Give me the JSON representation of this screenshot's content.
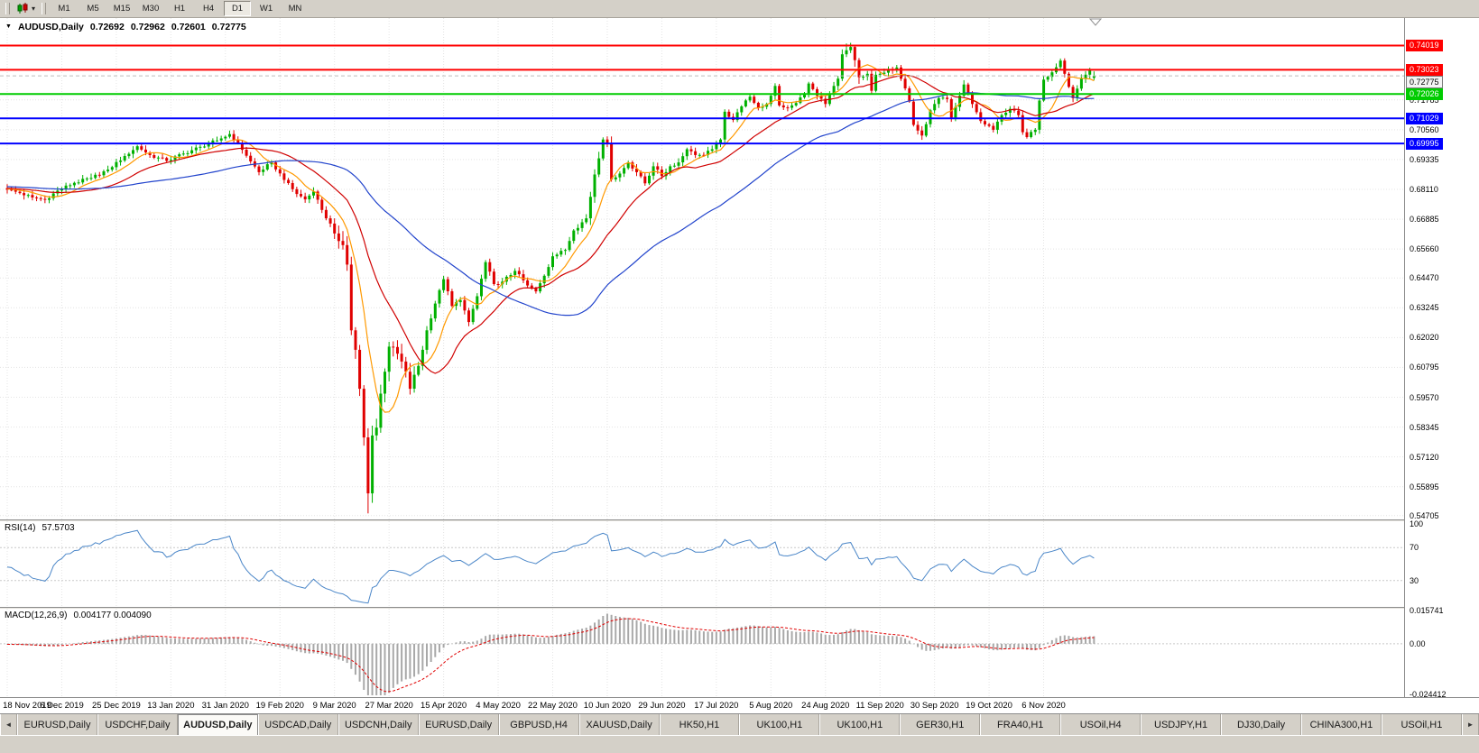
{
  "toolbar": {
    "chart_button": {
      "icon": "candlestick-chart-icon",
      "dropdown": "▾"
    },
    "timeframes": [
      "M1",
      "M5",
      "M15",
      "M30",
      "H1",
      "H4",
      "D1",
      "W1",
      "MN"
    ],
    "active_timeframe": "D1"
  },
  "chart_header": {
    "collapse_arrow": "▼",
    "title": "AUDUSD,Daily",
    "open": "0.72692",
    "high": "0.72962",
    "low": "0.72601",
    "close": "0.72775"
  },
  "price_scale": {
    "range_top": 0.7515,
    "range_bottom": 0.5455,
    "ticks": [
      "0.71785",
      "0.70560",
      "0.69335",
      "0.68110",
      "0.66885",
      "0.65660",
      "0.64470",
      "0.63245",
      "0.62020",
      "0.60795",
      "0.59570",
      "0.58345",
      "0.57120",
      "0.55895",
      "0.54705"
    ],
    "current_price": "0.72775"
  },
  "hlines": [
    {
      "price": 0.74019,
      "label": "0.74019",
      "color": "#ff0000"
    },
    {
      "price": 0.73023,
      "label": "0.73023",
      "color": "#ff0000"
    },
    {
      "price": 0.72026,
      "label": "0.72026",
      "color": "#00cc00"
    },
    {
      "price": 0.71029,
      "label": "0.71029",
      "color": "#0000ff"
    },
    {
      "price": 0.69995,
      "label": "0.69995",
      "color": "#0000ff"
    }
  ],
  "rsi_pane": {
    "label": "RSI(14)",
    "value": "57.5703",
    "scale": [
      {
        "text": "100",
        "v": 100
      },
      {
        "text": "70",
        "v": 70
      },
      {
        "text": "30",
        "v": 30
      }
    ],
    "levels": [
      70,
      30
    ],
    "color": "#4a86c8"
  },
  "macd_pane": {
    "label": "MACD(12,26,9)",
    "values": "0.004177 0.004090",
    "scale_top": "0.015741",
    "scale_zero": "0.00",
    "scale_bottom": "-0.024412"
  },
  "date_axis": [
    "18 Nov 2019",
    "6 Dec 2019",
    "25 Dec 2019",
    "13 Jan 2020",
    "31 Jan 2020",
    "19 Feb 2020",
    "9 Mar 2020",
    "27 Mar 2020",
    "15 Apr 2020",
    "4 May 2020",
    "22 May 2020",
    "10 Jun 2020",
    "29 Jun 2020",
    "17 Jul 2020",
    "5 Aug 2020",
    "24 Aug 2020",
    "11 Sep 2020",
    "30 Sep 2020",
    "19 Oct 2020",
    "6 Nov 2020"
  ],
  "tabs": {
    "left_arrow": "◄",
    "right_arrow": "►",
    "items": [
      "EURUSD,Daily",
      "USDCHF,Daily",
      "AUDUSD,Daily",
      "USDCAD,Daily",
      "USDCNH,Daily",
      "EURUSD,Daily",
      "GBPUSD,H4",
      "XAUUSD,Daily",
      "HK50,H1",
      "UK100,H1",
      "UK100,H1",
      "GER30,H1",
      "FRA40,H1",
      "USOil,H4",
      "USDJPY,H1",
      "DJ30,Daily",
      "CHINA300,H1",
      "USOil,H1"
    ],
    "active_index": 2
  },
  "chart_data": {
    "type": "candlestick",
    "title": "AUDUSD Daily",
    "symbol": "AUDUSD",
    "timeframe": "Daily",
    "bars": 260,
    "bars_per_label": 13,
    "up_color": "#00b000",
    "down_color": "#e00000",
    "x_labels": [
      "18 Nov 2019",
      "6 Dec 2019",
      "25 Dec 2019",
      "13 Jan 2020",
      "31 Jan 2020",
      "19 Feb 2020",
      "9 Mar 2020",
      "27 Mar 2020",
      "15 Apr 2020",
      "4 May 2020",
      "22 May 2020",
      "10 Jun 2020",
      "29 Jun 2020",
      "17 Jul 2020",
      "5 Aug 2020",
      "24 Aug 2020",
      "11 Sep 2020",
      "30 Sep 2020",
      "19 Oct 2020",
      "6 Nov 2020"
    ],
    "y_ticks": [
      0.71785,
      0.7056,
      0.69335,
      0.6811,
      0.66885,
      0.6566,
      0.6447,
      0.63245,
      0.6202,
      0.60795,
      0.5957,
      0.58345,
      0.5712,
      0.55895,
      0.54705
    ],
    "close_anchors": [
      [
        0,
        0.681
      ],
      [
        3,
        0.6796
      ],
      [
        6,
        0.6778
      ],
      [
        9,
        0.6768
      ],
      [
        12,
        0.6806
      ],
      [
        16,
        0.6838
      ],
      [
        20,
        0.6858
      ],
      [
        24,
        0.6892
      ],
      [
        28,
        0.6948
      ],
      [
        31,
        0.6988
      ],
      [
        34,
        0.6952
      ],
      [
        38,
        0.6928
      ],
      [
        42,
        0.6958
      ],
      [
        46,
        0.6986
      ],
      [
        50,
        0.7012
      ],
      [
        53,
        0.7038
      ],
      [
        55,
        0.7002
      ],
      [
        58,
        0.6926
      ],
      [
        60,
        0.6882
      ],
      [
        63,
        0.6922
      ],
      [
        66,
        0.685
      ],
      [
        69,
        0.6792
      ],
      [
        71,
        0.677
      ],
      [
        73,
        0.6802
      ],
      [
        76,
        0.6692
      ],
      [
        78,
        0.663
      ],
      [
        80,
        0.6582
      ],
      [
        81,
        0.6502
      ],
      [
        82,
        0.6232
      ],
      [
        83,
        0.6152
      ],
      [
        84,
        0.5992
      ],
      [
        85,
        0.5792
      ],
      [
        86,
        0.5562
      ],
      [
        87,
        0.58
      ],
      [
        88,
        0.5832
      ],
      [
        89,
        0.5972
      ],
      [
        90,
        0.6062
      ],
      [
        91,
        0.6165
      ],
      [
        93,
        0.6136
      ],
      [
        95,
        0.6062
      ],
      [
        96,
        0.5992
      ],
      [
        98,
        0.6086
      ],
      [
        100,
        0.6232
      ],
      [
        102,
        0.6342
      ],
      [
        104,
        0.6442
      ],
      [
        106,
        0.6332
      ],
      [
        108,
        0.6356
      ],
      [
        110,
        0.6266
      ],
      [
        112,
        0.6372
      ],
      [
        114,
        0.6512
      ],
      [
        116,
        0.6422
      ],
      [
        118,
        0.6432
      ],
      [
        121,
        0.6476
      ],
      [
        124,
        0.6416
      ],
      [
        126,
        0.6392
      ],
      [
        128,
        0.6456
      ],
      [
        130,
        0.6536
      ],
      [
        133,
        0.6562
      ],
      [
        135,
        0.6642
      ],
      [
        138,
        0.6692
      ],
      [
        140,
        0.6872
      ],
      [
        142,
        0.7016
      ],
      [
        143,
        0.7002
      ],
      [
        144,
        0.6852
      ],
      [
        146,
        0.6876
      ],
      [
        148,
        0.6922
      ],
      [
        150,
        0.6882
      ],
      [
        152,
        0.6836
      ],
      [
        154,
        0.6906
      ],
      [
        156,
        0.6866
      ],
      [
        158,
        0.6906
      ],
      [
        160,
        0.6922
      ],
      [
        162,
        0.6976
      ],
      [
        164,
        0.6952
      ],
      [
        166,
        0.6952
      ],
      [
        168,
        0.6976
      ],
      [
        170,
        0.7016
      ],
      [
        171,
        0.713
      ],
      [
        173,
        0.7096
      ],
      [
        175,
        0.7152
      ],
      [
        177,
        0.7192
      ],
      [
        179,
        0.7146
      ],
      [
        181,
        0.7162
      ],
      [
        183,
        0.7236
      ],
      [
        184,
        0.7156
      ],
      [
        186,
        0.7146
      ],
      [
        188,
        0.7166
      ],
      [
        190,
        0.7206
      ],
      [
        191,
        0.7246
      ],
      [
        193,
        0.7196
      ],
      [
        195,
        0.7162
      ],
      [
        197,
        0.7236
      ],
      [
        198,
        0.7266
      ],
      [
        199,
        0.7366
      ],
      [
        201,
        0.7396
      ],
      [
        202,
        0.7342
      ],
      [
        203,
        0.7272
      ],
      [
        205,
        0.7286
      ],
      [
        206,
        0.7216
      ],
      [
        207,
        0.7282
      ],
      [
        208,
        0.7286
      ],
      [
        210,
        0.7306
      ],
      [
        212,
        0.7312
      ],
      [
        214,
        0.7226
      ],
      [
        215,
        0.7172
      ],
      [
        216,
        0.7076
      ],
      [
        218,
        0.7032
      ],
      [
        220,
        0.7136
      ],
      [
        221,
        0.7162
      ],
      [
        222,
        0.7186
      ],
      [
        224,
        0.7182
      ],
      [
        225,
        0.7106
      ],
      [
        227,
        0.7196
      ],
      [
        228,
        0.7242
      ],
      [
        230,
        0.7162
      ],
      [
        232,
        0.7092
      ],
      [
        234,
        0.7072
      ],
      [
        235,
        0.7056
      ],
      [
        237,
        0.7116
      ],
      [
        239,
        0.7142
      ],
      [
        241,
        0.7116
      ],
      [
        242,
        0.7046
      ],
      [
        243,
        0.7026
      ],
      [
        245,
        0.7056
      ],
      [
        246,
        0.7176
      ],
      [
        247,
        0.7262
      ],
      [
        249,
        0.7292
      ],
      [
        251,
        0.734
      ],
      [
        252,
        0.7286
      ],
      [
        254,
        0.7186
      ],
      [
        256,
        0.7266
      ],
      [
        258,
        0.7302
      ],
      [
        259,
        0.72775
      ]
    ],
    "march_low_bar": 86,
    "march_low": 0.548,
    "september_high": {
      "bar": 201,
      "high": 0.7413
    },
    "last_bar": {
      "open": 0.72692,
      "high": 0.72962,
      "low": 0.72601,
      "close": 0.72775
    },
    "moving_averages": [
      {
        "name": "fast",
        "period": 8,
        "color": "#ff9900"
      },
      {
        "name": "medium",
        "period": 21,
        "color": "#d00000"
      },
      {
        "name": "slow",
        "period": 55,
        "color": "#2244cc"
      }
    ],
    "horizontal_lines": [
      0.74019,
      0.73023,
      0.72026,
      0.71029,
      0.69995
    ],
    "rsi": {
      "period": 14,
      "current": 57.5703,
      "levels": [
        70,
        30
      ],
      "range": [
        0,
        100
      ]
    },
    "macd": {
      "fast": 12,
      "slow": 26,
      "signal": 9,
      "current_main": 0.004177,
      "current_signal": 0.00409,
      "scale": [
        0.015741,
        -0.024412
      ]
    }
  }
}
